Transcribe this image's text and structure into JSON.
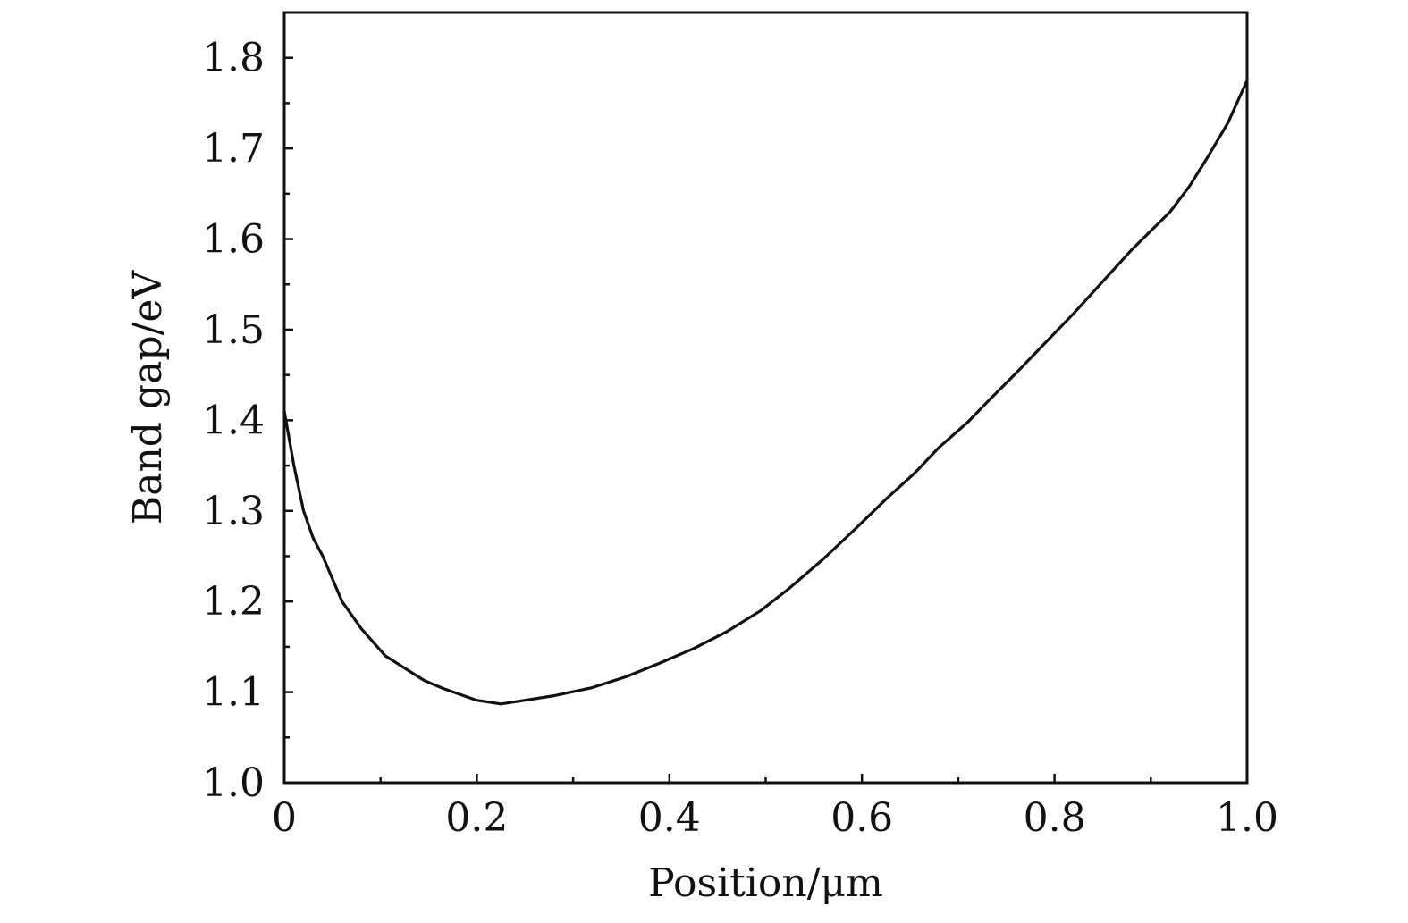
{
  "chart_data": {
    "type": "line",
    "title": "",
    "xlabel": "Position/μm",
    "ylabel": "Band gap/eV",
    "xlim": [
      0,
      1.0
    ],
    "ylim": [
      1.0,
      1.85
    ],
    "x_ticks": [
      0,
      0.2,
      0.4,
      0.6,
      0.8,
      1.0
    ],
    "x_tick_labels": [
      "0",
      "0.2",
      "0.4",
      "0.6",
      "0.8",
      "1.0"
    ],
    "y_ticks": [
      1.0,
      1.1,
      1.2,
      1.3,
      1.4,
      1.5,
      1.6,
      1.7,
      1.8
    ],
    "y_tick_labels": [
      "1.0",
      "1.1",
      "1.2",
      "1.3",
      "1.4",
      "1.5",
      "1.6",
      "1.7",
      "1.8"
    ],
    "grid": false,
    "legend": "none",
    "line_color": "#111111",
    "series": [
      {
        "x": [
          0,
          0.01,
          0.02,
          0.03,
          0.04,
          0.06,
          0.08,
          0.105,
          0.145,
          0.165,
          0.2,
          0.225,
          0.25,
          0.28,
          0.32,
          0.355,
          0.39,
          0.425,
          0.46,
          0.495,
          0.525,
          0.56,
          0.595,
          0.625,
          0.655,
          0.68,
          0.71,
          0.73,
          0.76,
          0.79,
          0.82,
          0.85,
          0.88,
          0.92,
          0.94,
          0.96,
          0.98,
          1.0
        ],
        "y": [
          1.41,
          1.35,
          1.3,
          1.27,
          1.25,
          1.2,
          1.17,
          1.14,
          1.113,
          1.104,
          1.091,
          1.087,
          1.091,
          1.096,
          1.105,
          1.117,
          1.132,
          1.148,
          1.167,
          1.19,
          1.215,
          1.247,
          1.282,
          1.313,
          1.342,
          1.37,
          1.398,
          1.42,
          1.452,
          1.485,
          1.518,
          1.553,
          1.588,
          1.63,
          1.658,
          1.692,
          1.728,
          1.775
        ]
      }
    ]
  }
}
